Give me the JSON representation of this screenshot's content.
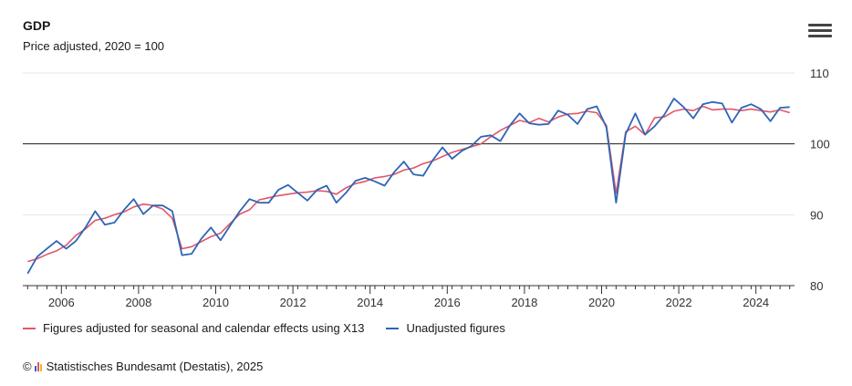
{
  "header": {
    "title": "GDP",
    "subtitle": "Price adjusted, 2020 = 100"
  },
  "menu": {
    "icon": "hamburger-menu-icon"
  },
  "footer": {
    "copyright_symbol": "©",
    "logo_icon": "destatis-logo-icon",
    "text": "Statistisches Bundesamt (Destatis), 2025"
  },
  "colors": {
    "adjusted": "#e0576b",
    "unadjusted": "#2f65b5",
    "reference_line": "#1a1a1a",
    "grid": "#e6e6e6",
    "axis": "#333333"
  },
  "chart_data": {
    "type": "line",
    "title": "GDP",
    "subtitle": "Price adjusted, 2020 = 100",
    "xlabel": "",
    "ylabel": "",
    "x_range": [
      2005,
      2025
    ],
    "ylim": [
      80,
      110
    ],
    "y_ticks": [
      80,
      90,
      100,
      110
    ],
    "x_ticks": [
      2006,
      2008,
      2010,
      2012,
      2014,
      2016,
      2018,
      2020,
      2022,
      2024
    ],
    "y_axis_side": "right",
    "reference_line": 100,
    "grid": true,
    "legend_position": "bottom-left",
    "x": [
      2005.125,
      2005.375,
      2005.625,
      2005.875,
      2006.125,
      2006.375,
      2006.625,
      2006.875,
      2007.125,
      2007.375,
      2007.625,
      2007.875,
      2008.125,
      2008.375,
      2008.625,
      2008.875,
      2009.125,
      2009.375,
      2009.625,
      2009.875,
      2010.125,
      2010.375,
      2010.625,
      2010.875,
      2011.125,
      2011.375,
      2011.625,
      2011.875,
      2012.125,
      2012.375,
      2012.625,
      2012.875,
      2013.125,
      2013.375,
      2013.625,
      2013.875,
      2014.125,
      2014.375,
      2014.625,
      2014.875,
      2015.125,
      2015.375,
      2015.625,
      2015.875,
      2016.125,
      2016.375,
      2016.625,
      2016.875,
      2017.125,
      2017.375,
      2017.625,
      2017.875,
      2018.125,
      2018.375,
      2018.625,
      2018.875,
      2019.125,
      2019.375,
      2019.625,
      2019.875,
      2020.125,
      2020.375,
      2020.625,
      2020.875,
      2021.125,
      2021.375,
      2021.625,
      2021.875,
      2022.125,
      2022.375,
      2022.625,
      2022.875,
      2023.125,
      2023.375,
      2023.625,
      2023.875,
      2024.125,
      2024.375,
      2024.625,
      2024.875
    ],
    "series": [
      {
        "name": "Figures adjusted for seasonal and calendar effects using X13",
        "color": "#e0576b",
        "values": [
          83.4,
          83.8,
          84.4,
          84.9,
          85.7,
          87.1,
          88.0,
          89.2,
          89.5,
          90.0,
          90.4,
          91.1,
          91.5,
          91.3,
          90.8,
          89.5,
          85.2,
          85.5,
          86.2,
          86.9,
          87.4,
          88.8,
          90.1,
          90.7,
          92.1,
          92.4,
          92.7,
          92.9,
          93.1,
          93.2,
          93.4,
          93.3,
          92.9,
          93.8,
          94.4,
          94.7,
          95.2,
          95.4,
          95.7,
          96.3,
          96.6,
          97.2,
          97.6,
          98.2,
          98.8,
          99.2,
          99.6,
          100.0,
          101.0,
          101.9,
          102.6,
          103.3,
          103.0,
          103.6,
          103.1,
          103.8,
          104.2,
          104.3,
          104.6,
          104.4,
          102.6,
          93.0,
          101.7,
          102.5,
          101.3,
          103.7,
          103.8,
          104.6,
          104.9,
          104.7,
          105.3,
          104.8,
          104.9,
          104.9,
          104.7,
          104.9,
          104.7,
          104.5,
          104.8,
          104.4
        ]
      },
      {
        "name": "Unadjusted figures",
        "color": "#2f65b5",
        "values": [
          81.7,
          84.1,
          85.2,
          86.3,
          85.2,
          86.3,
          88.2,
          90.5,
          88.6,
          88.9,
          90.7,
          92.2,
          90.1,
          91.3,
          91.3,
          90.5,
          84.3,
          84.5,
          86.6,
          88.2,
          86.4,
          88.5,
          90.5,
          92.2,
          91.7,
          91.7,
          93.5,
          94.2,
          93.1,
          92.0,
          93.5,
          94.1,
          91.7,
          93.1,
          94.8,
          95.2,
          94.7,
          94.1,
          96.0,
          97.5,
          95.7,
          95.5,
          97.7,
          99.5,
          97.9,
          99.0,
          99.7,
          101.0,
          101.2,
          100.4,
          102.6,
          104.3,
          102.9,
          102.7,
          102.8,
          104.7,
          104.1,
          102.8,
          104.9,
          105.3,
          102.3,
          91.7,
          101.4,
          104.3,
          101.3,
          102.5,
          104.1,
          106.4,
          105.2,
          103.6,
          105.6,
          105.9,
          105.7,
          103.0,
          105.1,
          105.6,
          104.9,
          103.2,
          105.1,
          105.2
        ]
      }
    ]
  }
}
